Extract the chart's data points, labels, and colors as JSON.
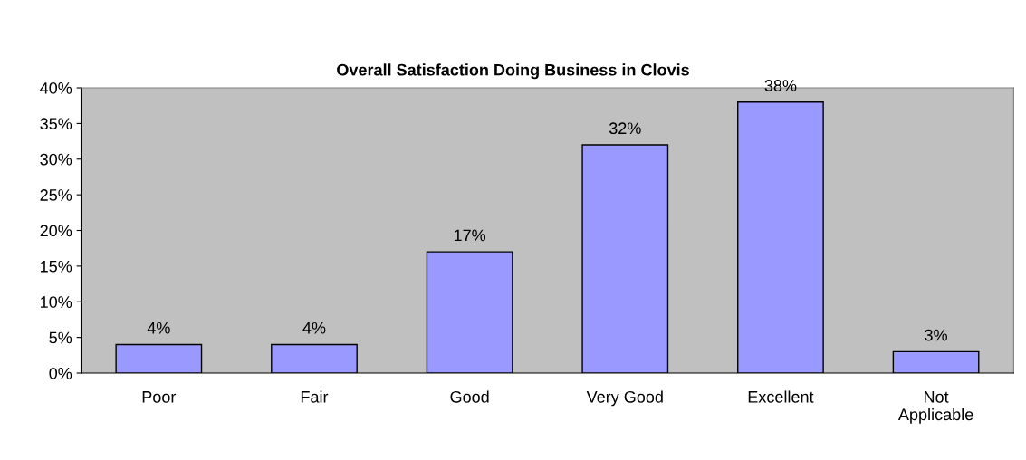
{
  "chart_data": {
    "type": "bar",
    "title": "Overall Satisfaction Doing Business in Clovis",
    "categories": [
      "Poor",
      "Fair",
      "Good",
      "Very Good",
      "Excellent",
      "Not\nApplicable"
    ],
    "values": [
      4,
      4,
      17,
      32,
      38,
      3
    ],
    "value_labels": [
      "4%",
      "4%",
      "17%",
      "32%",
      "38%",
      "3%"
    ],
    "color": "#9999ff",
    "ylim": [
      0,
      40
    ],
    "yticks": [
      {
        "value": 0,
        "label": "0%"
      },
      {
        "value": 5,
        "label": "5%"
      },
      {
        "value": 10,
        "label": "10%"
      },
      {
        "value": 15,
        "label": "15%"
      },
      {
        "value": 20,
        "label": "20%"
      },
      {
        "value": 25,
        "label": "25%"
      },
      {
        "value": 30,
        "label": "30%"
      },
      {
        "value": 35,
        "label": "35%"
      },
      {
        "value": 40,
        "label": "40%"
      }
    ],
    "grid": false,
    "legend": false
  }
}
